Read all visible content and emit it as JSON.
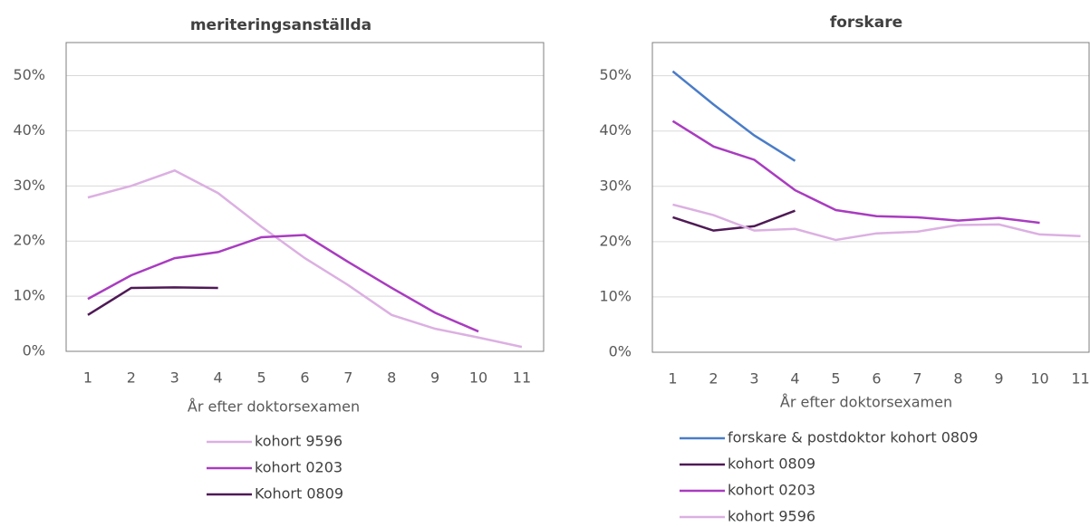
{
  "chart_data": [
    {
      "type": "line",
      "title": "meriteringsanställda",
      "x_label": "År efter doktorsexamen",
      "categories": [
        "1",
        "2",
        "3",
        "4",
        "5",
        "6",
        "7",
        "8",
        "9",
        "10",
        "11"
      ],
      "ylim": [
        0,
        56
      ],
      "yticks": [
        {
          "value": 0,
          "label": "0%"
        },
        {
          "value": 10,
          "label": "10%"
        },
        {
          "value": 20,
          "label": "20%"
        },
        {
          "value": 30,
          "label": "30%"
        },
        {
          "value": 40,
          "label": "40%"
        },
        {
          "value": 50,
          "label": "50%"
        }
      ],
      "grid": true,
      "series": [
        {
          "name": "kohort 9596",
          "color": "#dcb0e2",
          "values": [
            27.9,
            30,
            32.8,
            28.7,
            22.6,
            16.9,
            12,
            6.6,
            4.1,
            2.5,
            0.8
          ]
        },
        {
          "name": "kohort 0203",
          "color": "#a93cc0",
          "values": [
            9.5,
            13.8,
            16.9,
            18,
            20.7,
            21.1,
            16.2,
            11.5,
            7,
            3.6,
            null
          ]
        },
        {
          "name": "Kohort 0809",
          "color": "#4f1a55",
          "values": [
            6.6,
            11.5,
            11.6,
            11.5,
            null,
            null,
            null,
            null,
            null,
            null,
            null
          ]
        }
      ]
    },
    {
      "type": "line",
      "title": "forskare",
      "x_label": "År efter doktorsexamen",
      "categories": [
        "1",
        "2",
        "3",
        "4",
        "5",
        "6",
        "7",
        "8",
        "9",
        "10",
        "11"
      ],
      "ylim": [
        0,
        56
      ],
      "yticks": [
        {
          "value": 0,
          "label": "0%"
        },
        {
          "value": 10,
          "label": "10%"
        },
        {
          "value": 20,
          "label": "20%"
        },
        {
          "value": 30,
          "label": "30%"
        },
        {
          "value": 40,
          "label": "40%"
        },
        {
          "value": 50,
          "label": "50%"
        }
      ],
      "grid": true,
      "series": [
        {
          "name": "forskare & postdoktor kohort 0809",
          "color": "#4a7cc8",
          "values": [
            50.8,
            44.8,
            39.2,
            34.6,
            null,
            null,
            null,
            null,
            null,
            null,
            null
          ]
        },
        {
          "name": "kohort 0809",
          "color": "#4f1a55",
          "values": [
            24.4,
            22,
            22.8,
            25.6,
            null,
            null,
            null,
            null,
            null,
            null,
            null
          ]
        },
        {
          "name": "kohort 0203",
          "color": "#a93cc0",
          "values": [
            41.8,
            37.2,
            34.8,
            29.3,
            25.7,
            24.6,
            24.4,
            23.8,
            24.3,
            23.4,
            null
          ]
        },
        {
          "name": "kohort 9596",
          "color": "#dcb0e2",
          "values": [
            26.7,
            24.8,
            22,
            22.3,
            20.3,
            21.5,
            21.8,
            23,
            23.1,
            21.3,
            21
          ]
        }
      ]
    }
  ]
}
